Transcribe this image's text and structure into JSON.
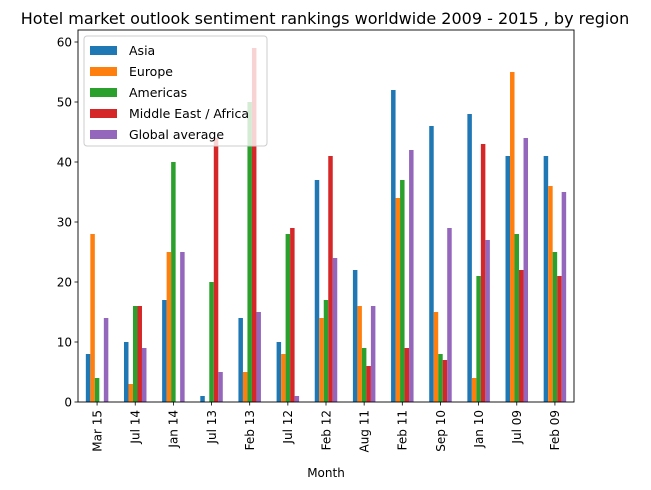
{
  "chart_data": {
    "type": "bar",
    "title": "Hotel market outlook sentiment rankings worldwide 2009 - 2015 , by region",
    "xlabel": "Month",
    "ylabel": "",
    "ylim": [
      0,
      62
    ],
    "yticks": [
      0,
      10,
      20,
      30,
      40,
      50,
      60
    ],
    "grid": false,
    "legend_position": "top-left",
    "categories": [
      "Mar 15",
      "Jul 14",
      "Jan 14",
      "Jul 13",
      "Feb 13",
      "Jul 12",
      "Feb 12",
      "Aug 11",
      "Feb 11",
      "Sep 10",
      "Jan 10",
      "Jul 09",
      "Feb 09"
    ],
    "series": [
      {
        "name": "Asia",
        "color": "#1f77b4",
        "values": [
          8,
          10,
          17,
          1,
          14,
          10,
          37,
          22,
          52,
          46,
          48,
          41,
          41
        ]
      },
      {
        "name": "Europe",
        "color": "#ff7f0e",
        "values": [
          28,
          3,
          25,
          0,
          5,
          8,
          14,
          16,
          34,
          15,
          4,
          55,
          36
        ]
      },
      {
        "name": "Americas",
        "color": "#2ca02c",
        "values": [
          4,
          16,
          40,
          20,
          50,
          28,
          17,
          9,
          37,
          8,
          21,
          28,
          25
        ]
      },
      {
        "name": "Middle East / Africa",
        "color": "#d62728",
        "values": [
          0,
          16,
          0,
          44,
          59,
          29,
          41,
          6,
          9,
          7,
          43,
          22,
          21
        ]
      },
      {
        "name": "Global average",
        "color": "#9467bd",
        "values": [
          14,
          9,
          25,
          5,
          15,
          1,
          24,
          16,
          42,
          29,
          27,
          44,
          35
        ]
      }
    ]
  }
}
